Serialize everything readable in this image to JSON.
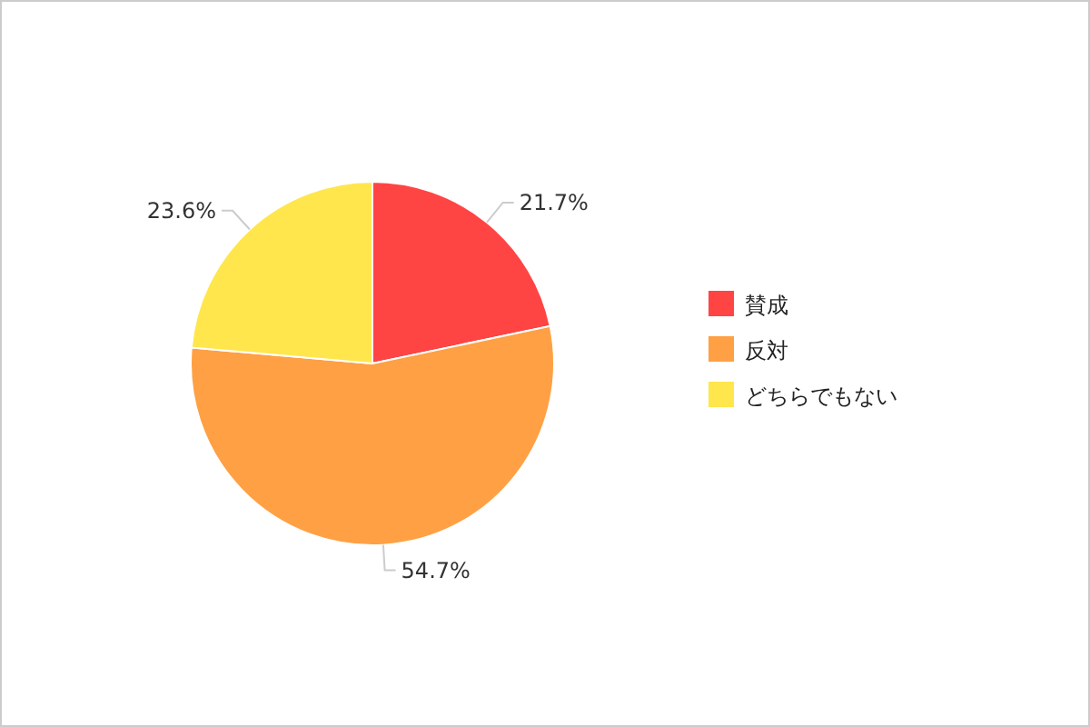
{
  "chart_data": {
    "type": "pie",
    "categories": [
      "賛成",
      "反対",
      "どちらでもない"
    ],
    "values": [
      21.7,
      54.7,
      23.6
    ],
    "value_labels": [
      "21.7%",
      "54.7%",
      "23.6%"
    ],
    "colors": [
      "#ff4444",
      "#ffa044",
      "#ffe64d"
    ],
    "legend": "right"
  }
}
